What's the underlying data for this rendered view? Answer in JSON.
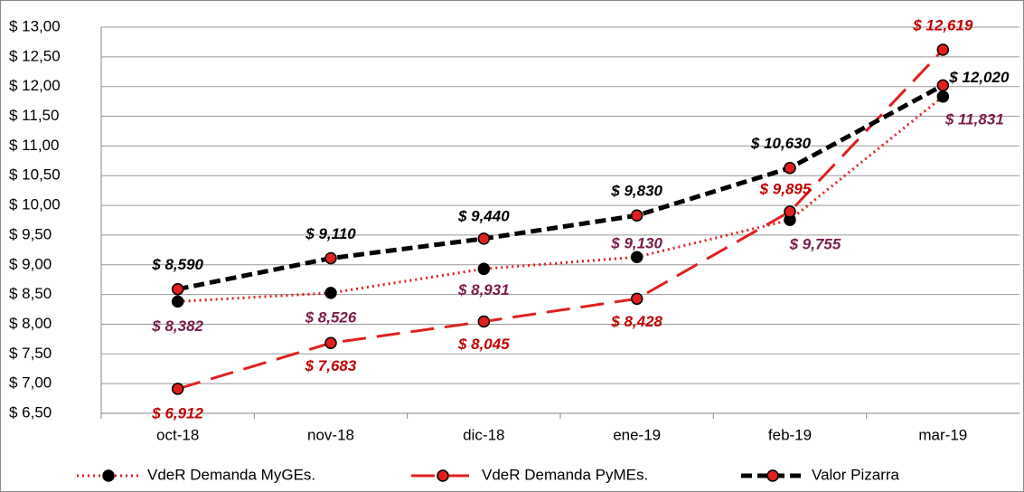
{
  "chart_data": {
    "type": "line",
    "categories": [
      "oct-18",
      "nov-18",
      "dic-18",
      "ene-19",
      "feb-19",
      "mar-19"
    ],
    "ylim": [
      6.5,
      13
    ],
    "yticks": [
      {
        "value": 6.5,
        "label": "$ 6,50"
      },
      {
        "value": 7,
        "label": "$ 7,00"
      },
      {
        "value": 7.5,
        "label": "$ 7,50"
      },
      {
        "value": 8,
        "label": "$ 8,00"
      },
      {
        "value": 8.5,
        "label": "$ 8,50"
      },
      {
        "value": 9,
        "label": "$ 9,00"
      },
      {
        "value": 9.5,
        "label": "$ 9,50"
      },
      {
        "value": 10,
        "label": "$ 10,00"
      },
      {
        "value": 10.5,
        "label": "$ 10,50"
      },
      {
        "value": 11,
        "label": "$ 11,00"
      },
      {
        "value": 11.5,
        "label": "$ 11,50"
      },
      {
        "value": 12,
        "label": "$ 12,00"
      },
      {
        "value": 12.5,
        "label": "$ 12,50"
      },
      {
        "value": 13,
        "label": "$ 13,00"
      }
    ],
    "grid": true,
    "legend": "bottom",
    "series": [
      {
        "name": "VdeR Demanda MyGEs.",
        "color": "#e02020",
        "dash": "dotted",
        "marker_color": "#000000",
        "label_color": "#7b1c4a",
        "values": [
          8.382,
          8.526,
          8.931,
          9.13,
          9.755,
          11.831
        ],
        "value_labels": [
          "$ 8,382",
          "$ 8,526",
          "$ 8,931",
          "$ 9,130",
          "$ 9,755",
          "$ 11,831"
        ]
      },
      {
        "name": "VdeR Demanda PyMEs.",
        "color": "#e02020",
        "dash": "long",
        "marker_color": "#e02020",
        "label_color": "#c00000",
        "values": [
          6.912,
          7.683,
          8.045,
          8.428,
          9.895,
          12.619
        ],
        "value_labels": [
          "$ 6,912",
          "$ 7,683",
          "$ 8,045",
          "$ 8,428",
          "$ 9,895",
          "$ 12,619"
        ]
      },
      {
        "name": "Valor Pizarra",
        "color": "#000000",
        "dash": "dashed",
        "marker_color": "#e02020",
        "label_color": "#000000",
        "values": [
          8.59,
          9.11,
          9.44,
          9.83,
          10.63,
          12.02
        ],
        "value_labels": [
          "$ 8,590",
          "$ 9,110",
          "$ 9,440",
          "$ 9,830",
          "$ 10,630",
          "$ 12,020"
        ]
      }
    ]
  }
}
